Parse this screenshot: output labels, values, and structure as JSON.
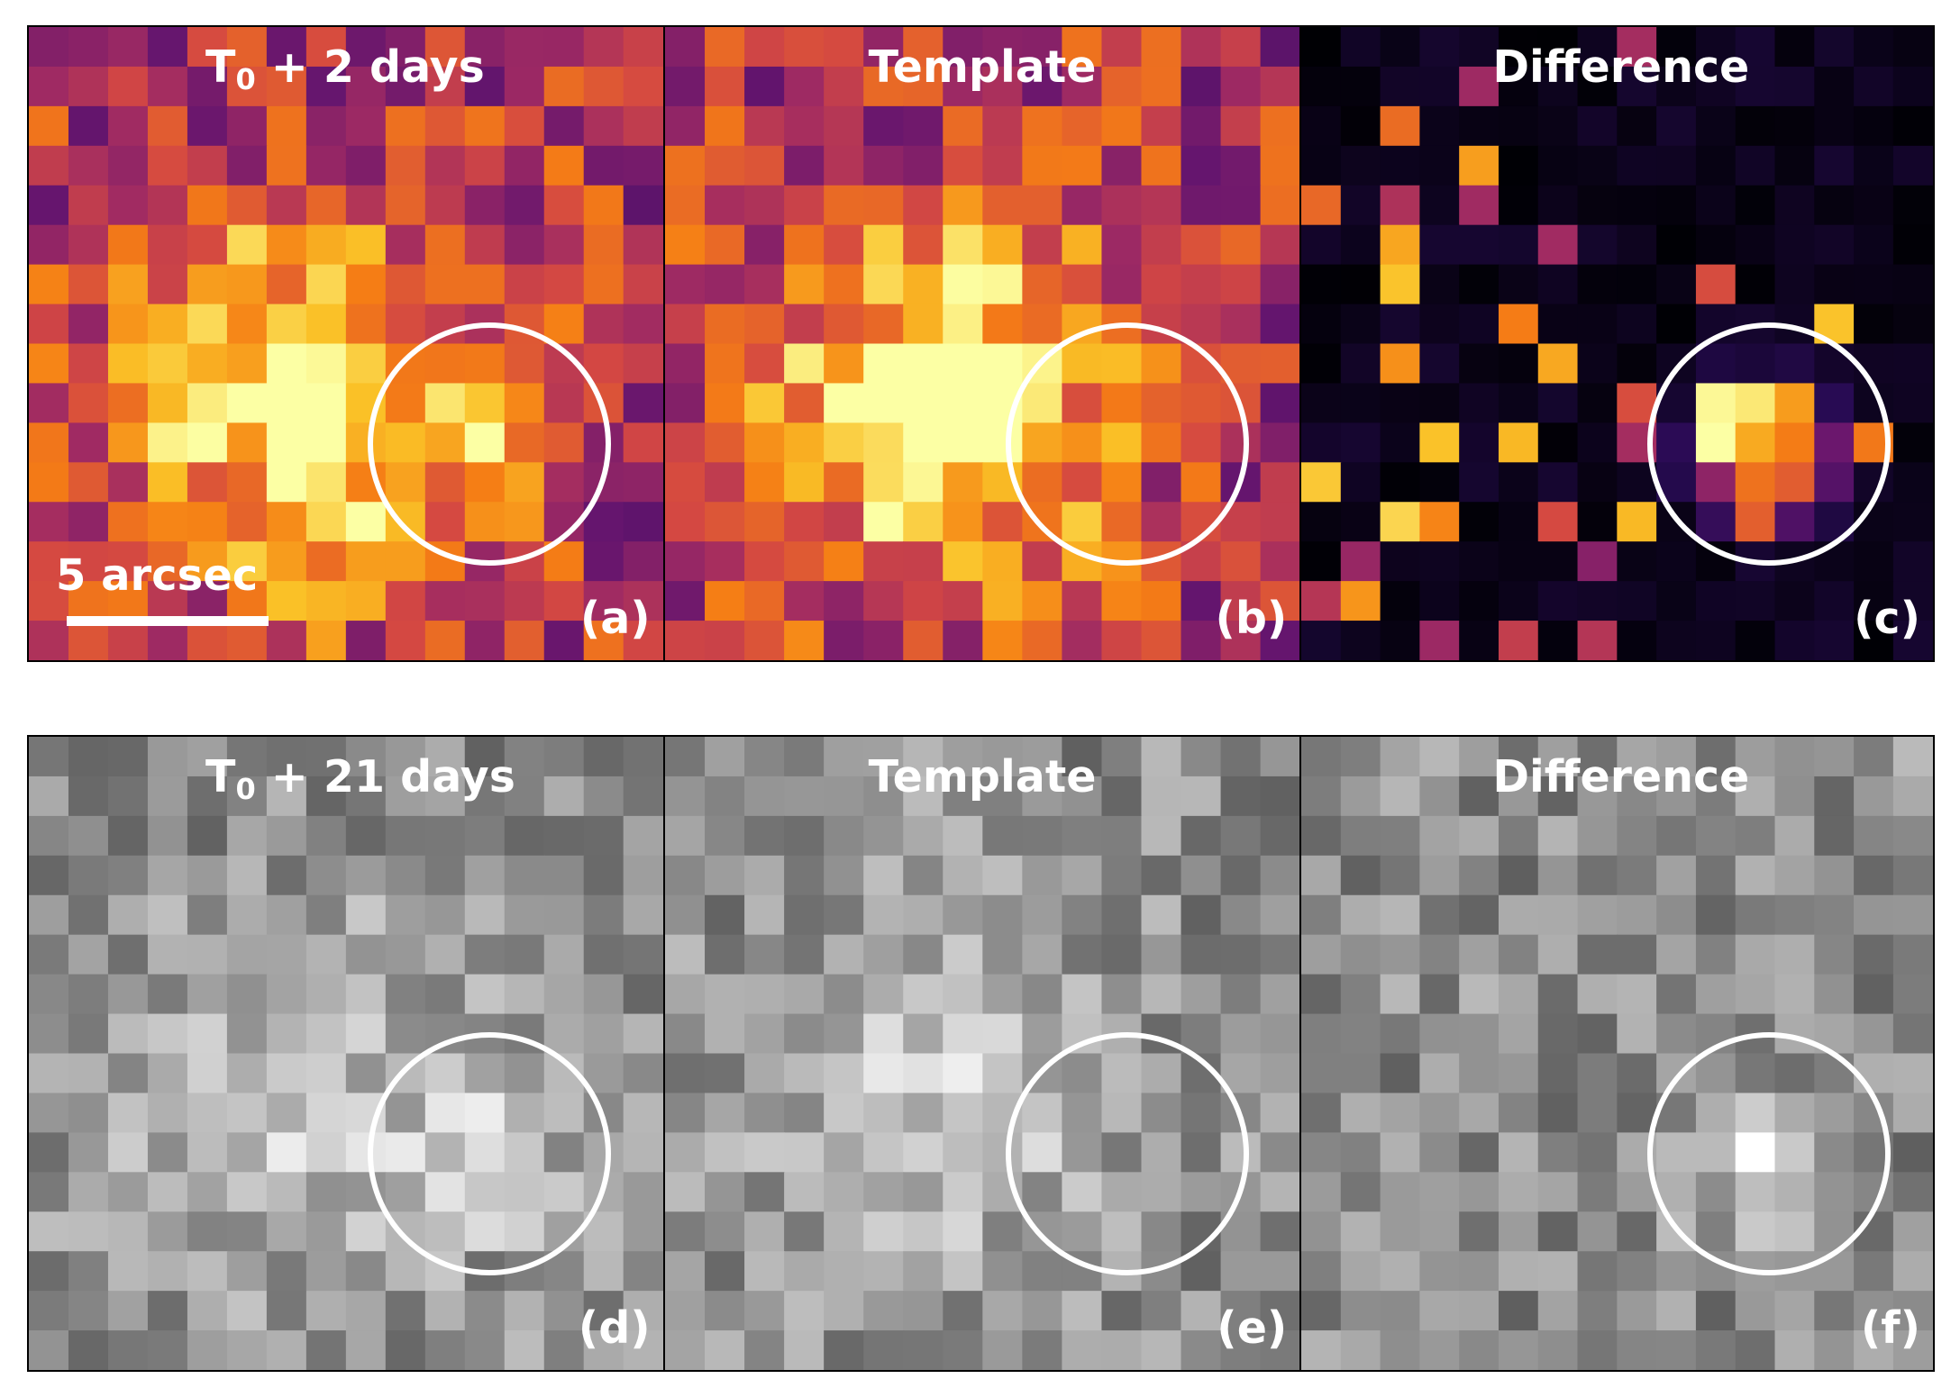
{
  "figure": {
    "rows": [
      {
        "colormap": "inferno",
        "panels": [
          {
            "title": "T",
            "title_sub": "0",
            "title_tail": " + 2 days",
            "label": "(a)",
            "seed": 11,
            "source_peak": 0.3,
            "host_peak": 0.55
          },
          {
            "title": "Template",
            "label": "(b)",
            "seed": 29,
            "source_peak": 0.0,
            "host_peak": 0.55
          },
          {
            "title": "Difference",
            "label": "(c)",
            "seed": 47,
            "source_peak": 0.85,
            "host_peak": 0.0
          }
        ]
      },
      {
        "colormap": "gray",
        "panels": [
          {
            "title": "T",
            "title_sub": "0",
            "title_tail": " + 21 days",
            "label": "(d)",
            "seed": 53,
            "source_peak": 0.45,
            "host_peak": 0.25
          },
          {
            "title": "Template",
            "label": "(e)",
            "seed": 71,
            "source_peak": 0.0,
            "host_peak": 0.25
          },
          {
            "title": "Difference",
            "label": "(f)",
            "seed": 89,
            "source_peak": 0.45,
            "host_peak": 0.0
          }
        ]
      }
    ],
    "scalebar": {
      "label": "5 arcsec"
    },
    "grid": {
      "cols": 16,
      "rows": 16
    }
  },
  "colors": {
    "marker_ring": "#ffffff",
    "label_text": "#ffffff",
    "frame": "#000000"
  }
}
